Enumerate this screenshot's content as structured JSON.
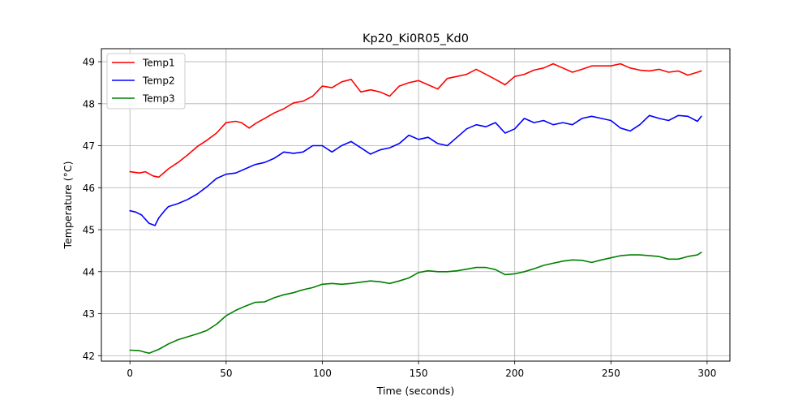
{
  "chart_data": {
    "type": "line",
    "title": "Kp20_Ki0R05_Kd0",
    "xlabel": "Time (seconds)",
    "ylabel": "Temperature (°C)",
    "xlim": [
      -14.85,
      311.85
    ],
    "ylim": [
      41.87,
      49.31
    ],
    "xticks": [
      0,
      50,
      100,
      150,
      200,
      250,
      300
    ],
    "yticks": [
      42,
      43,
      44,
      45,
      46,
      47,
      48,
      49
    ],
    "grid": true,
    "legend_position": "upper left",
    "series": [
      {
        "name": "Temp1",
        "color": "#ff0000",
        "x": [
          0,
          5,
          8,
          12,
          15,
          20,
          25,
          30,
          35,
          40,
          45,
          50,
          55,
          58,
          62,
          65,
          70,
          75,
          80,
          85,
          90,
          95,
          100,
          105,
          110,
          115,
          120,
          125,
          130,
          135,
          140,
          145,
          150,
          155,
          160,
          165,
          170,
          175,
          180,
          185,
          190,
          195,
          200,
          205,
          210,
          215,
          220,
          225,
          230,
          235,
          240,
          245,
          250,
          255,
          260,
          265,
          270,
          275,
          280,
          285,
          290,
          295,
          297
        ],
        "y": [
          46.38,
          46.35,
          46.38,
          46.28,
          46.25,
          46.45,
          46.6,
          46.78,
          46.98,
          47.13,
          47.3,
          47.55,
          47.58,
          47.55,
          47.42,
          47.52,
          47.65,
          47.78,
          47.88,
          48.02,
          48.06,
          48.18,
          48.42,
          48.38,
          48.52,
          48.58,
          48.28,
          48.33,
          48.28,
          48.18,
          48.42,
          48.5,
          48.55,
          48.45,
          48.35,
          48.6,
          48.65,
          48.7,
          48.82,
          48.7,
          48.58,
          48.45,
          48.65,
          48.7,
          48.8,
          48.85,
          48.95,
          48.85,
          48.75,
          48.82,
          48.9,
          48.9,
          48.9,
          48.95,
          48.85,
          48.8,
          48.78,
          48.82,
          48.75,
          48.78,
          48.68,
          48.75,
          48.78
        ]
      },
      {
        "name": "Temp2",
        "color": "#0000ff",
        "x": [
          0,
          3,
          6,
          10,
          13,
          15,
          18,
          20,
          25,
          30,
          35,
          40,
          45,
          50,
          55,
          60,
          65,
          70,
          75,
          80,
          85,
          90,
          95,
          100,
          105,
          110,
          115,
          120,
          125,
          130,
          135,
          140,
          145,
          150,
          155,
          160,
          165,
          170,
          175,
          180,
          185,
          190,
          195,
          200,
          205,
          210,
          215,
          220,
          225,
          230,
          235,
          240,
          245,
          250,
          255,
          260,
          265,
          270,
          275,
          280,
          285,
          290,
          295,
          297
        ],
        "y": [
          45.45,
          45.42,
          45.35,
          45.15,
          45.1,
          45.28,
          45.45,
          45.55,
          45.62,
          45.72,
          45.85,
          46.02,
          46.22,
          46.32,
          46.35,
          46.45,
          46.55,
          46.6,
          46.7,
          46.85,
          46.82,
          46.85,
          47.0,
          47.0,
          46.85,
          47.0,
          47.1,
          46.95,
          46.8,
          46.9,
          46.95,
          47.05,
          47.25,
          47.15,
          47.2,
          47.05,
          47.0,
          47.2,
          47.4,
          47.5,
          47.45,
          47.55,
          47.3,
          47.4,
          47.65,
          47.55,
          47.6,
          47.5,
          47.55,
          47.5,
          47.65,
          47.7,
          47.65,
          47.6,
          47.42,
          47.35,
          47.5,
          47.72,
          47.65,
          47.6,
          47.72,
          47.7,
          47.58,
          47.7
        ]
      },
      {
        "name": "Temp3",
        "color": "#008000",
        "x": [
          0,
          5,
          8,
          10,
          15,
          20,
          25,
          30,
          35,
          40,
          45,
          50,
          55,
          60,
          65,
          70,
          75,
          80,
          85,
          90,
          95,
          100,
          105,
          110,
          115,
          120,
          125,
          130,
          135,
          140,
          145,
          150,
          155,
          160,
          165,
          170,
          175,
          180,
          185,
          190,
          195,
          200,
          205,
          210,
          215,
          220,
          225,
          230,
          235,
          240,
          245,
          250,
          255,
          260,
          265,
          270,
          275,
          280,
          285,
          290,
          295,
          297
        ],
        "y": [
          42.13,
          42.12,
          42.08,
          42.06,
          42.15,
          42.28,
          42.38,
          42.45,
          42.52,
          42.6,
          42.75,
          42.95,
          43.08,
          43.18,
          43.27,
          43.28,
          43.38,
          43.45,
          43.5,
          43.57,
          43.62,
          43.7,
          43.72,
          43.7,
          43.72,
          43.75,
          43.78,
          43.76,
          43.72,
          43.78,
          43.85,
          43.98,
          44.02,
          44.0,
          44.0,
          44.02,
          44.06,
          44.1,
          44.1,
          44.05,
          43.93,
          43.95,
          44.0,
          44.07,
          44.15,
          44.2,
          44.25,
          44.28,
          44.27,
          44.22,
          44.28,
          44.33,
          44.38,
          44.4,
          44.4,
          44.38,
          44.36,
          44.3,
          44.3,
          44.36,
          44.4,
          44.46
        ]
      }
    ]
  }
}
